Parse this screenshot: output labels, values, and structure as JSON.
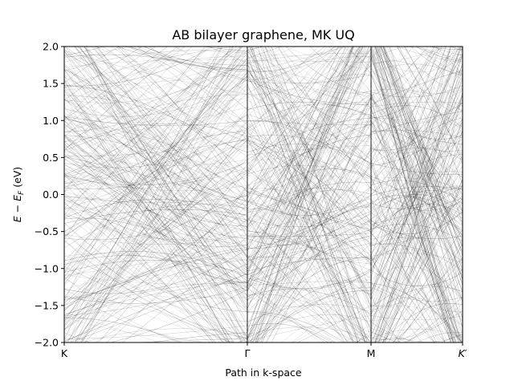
{
  "chart_data": {
    "type": "line",
    "title": "AB bilayer graphene, MK UQ",
    "xlabel": "Path in k-space",
    "ylabel": "E − E_F (eV)",
    "ylabel_main": "E − E",
    "ylabel_sub": "F",
    "ylabel_unit": " (eV)",
    "ylim": [
      -2.0,
      2.0
    ],
    "y_ticks": [
      -2.0,
      -1.5,
      -1.0,
      -0.5,
      0.0,
      0.5,
      1.0,
      1.5,
      2.0
    ],
    "y_tick_labels": [
      "−2.0",
      "−1.5",
      "−1.0",
      "−0.5",
      "0.0",
      "0.5",
      "1.0",
      "1.5",
      "2.0"
    ],
    "x_range": [
      0,
      3.22
    ],
    "x_ticks": [
      0,
      1.48,
      2.48,
      3.22
    ],
    "x_tick_labels": [
      "K",
      "Γ",
      "M",
      "K′"
    ],
    "vertical_lines": [
      1.48,
      2.48
    ],
    "grid": false,
    "line_color": "#000000",
    "description_series": "dense ensemble of faint uncertainty-sample band curves"
  }
}
